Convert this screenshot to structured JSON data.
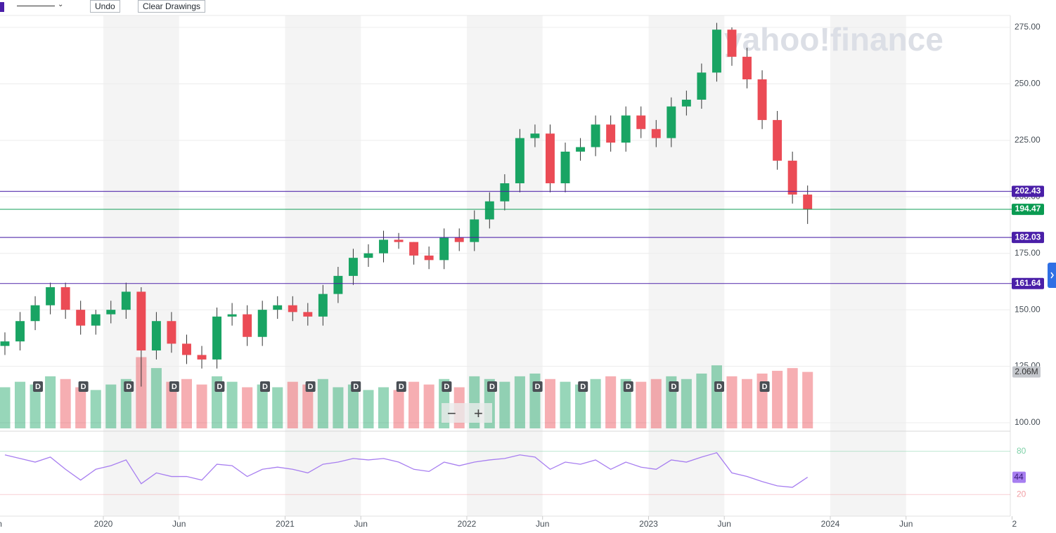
{
  "toolbar": {
    "undo": "Undo",
    "clear": "Clear Drawings",
    "zoom_out": "−",
    "zoom_in": "+"
  },
  "watermark": "yahoo!finance",
  "chart_data": {
    "type": "candlestick",
    "x": [
      "2019-06",
      "2019-07",
      "2019-08",
      "2019-09",
      "2019-10",
      "2019-11",
      "2019-12",
      "2020-01",
      "2020-02",
      "2020-03",
      "2020-04",
      "2020-05",
      "2020-06",
      "2020-07",
      "2020-08",
      "2020-09",
      "2020-10",
      "2020-11",
      "2020-12",
      "2021-01",
      "2021-02",
      "2021-03",
      "2021-04",
      "2021-05",
      "2021-06",
      "2021-07",
      "2021-08",
      "2021-09",
      "2021-10",
      "2021-11",
      "2021-12",
      "2022-01",
      "2022-02",
      "2022-03",
      "2022-04",
      "2022-05",
      "2022-06",
      "2022-07",
      "2022-08",
      "2022-09",
      "2022-10",
      "2022-11",
      "2022-12",
      "2023-01",
      "2023-02",
      "2023-03",
      "2023-04",
      "2023-05",
      "2023-06",
      "2023-07",
      "2023-08",
      "2023-09",
      "2023-10",
      "2023-11"
    ],
    "open": [
      134,
      136,
      145,
      152,
      160,
      150,
      143,
      148,
      150,
      158,
      132,
      145,
      135,
      130,
      128,
      147,
      148,
      138,
      150,
      152,
      149,
      147,
      157,
      165,
      173,
      175,
      181,
      180,
      174,
      172,
      182,
      180,
      190,
      198,
      206,
      226,
      228,
      206,
      220,
      222,
      232,
      224,
      236,
      230,
      226,
      240,
      243,
      255,
      274,
      262,
      252,
      234,
      216,
      201
    ],
    "high": [
      140,
      149,
      156,
      162,
      162,
      154,
      150,
      154,
      162,
      160,
      149,
      149,
      139,
      134,
      151,
      153,
      152,
      154,
      156,
      156,
      153,
      161,
      169,
      177,
      179,
      185,
      184,
      180,
      178,
      186,
      186,
      194,
      202,
      210,
      230,
      232,
      232,
      224,
      226,
      236,
      236,
      240,
      240,
      234,
      244,
      247,
      259,
      277,
      275,
      266,
      256,
      238,
      220,
      205
    ],
    "low": [
      130,
      132,
      141,
      148,
      146,
      139,
      139,
      144,
      146,
      116,
      128,
      131,
      126,
      124,
      124,
      143,
      134,
      134,
      146,
      145,
      143,
      143,
      153,
      161,
      169,
      171,
      177,
      170,
      168,
      168,
      176,
      176,
      186,
      194,
      202,
      222,
      202,
      202,
      216,
      218,
      220,
      220,
      226,
      222,
      222,
      236,
      239,
      251,
      258,
      248,
      230,
      212,
      197,
      188
    ],
    "close": [
      136,
      145,
      152,
      160,
      150,
      143,
      148,
      150,
      158,
      132,
      145,
      135,
      130,
      128,
      147,
      148,
      138,
      150,
      152,
      149,
      147,
      157,
      165,
      173,
      175,
      181,
      180,
      174,
      172,
      182,
      180,
      190,
      198,
      206,
      226,
      228,
      206,
      220,
      222,
      232,
      224,
      236,
      230,
      226,
      240,
      243,
      255,
      274,
      262,
      252,
      234,
      216,
      201,
      194.47
    ],
    "up_color": "#19a463",
    "down_color": "#eb4b55",
    "ylim": [
      100,
      275
    ],
    "yticks": [
      {
        "value": 100,
        "label": "100.00"
      },
      {
        "value": 125,
        "label": "125.00"
      },
      {
        "value": 150,
        "label": "150.00"
      },
      {
        "value": 175,
        "label": "175.00"
      },
      {
        "value": 200,
        "label": "200.00"
      },
      {
        "value": 225,
        "label": "225.00"
      },
      {
        "value": 250,
        "label": "250.00"
      },
      {
        "value": 275,
        "label": "275.00"
      }
    ],
    "grid": true,
    "xticks": [
      {
        "value": "2019-06",
        "label": "n"
      },
      {
        "value": "2020-01",
        "label": "2020"
      },
      {
        "value": "2020-06",
        "label": "Jun"
      },
      {
        "value": "2021-01",
        "label": "2021"
      },
      {
        "value": "2021-06",
        "label": "Jun"
      },
      {
        "value": "2022-01",
        "label": "2022"
      },
      {
        "value": "2022-06",
        "label": "Jun"
      },
      {
        "value": "2023-01",
        "label": "2023"
      },
      {
        "value": "2023-06",
        "label": "Jun"
      },
      {
        "value": "2024-01",
        "label": "2024"
      },
      {
        "value": "2024-06",
        "label": "Jun"
      },
      {
        "value": "2025-01",
        "label": "2"
      }
    ],
    "hlines": [
      {
        "value": 202.43,
        "color": "#4a1fa8"
      },
      {
        "value": 194.47,
        "color": "#0a9b52"
      },
      {
        "value": 182.03,
        "color": "#4a1fa8"
      },
      {
        "value": 161.64,
        "color": "#4a1fa8"
      }
    ],
    "volume": {
      "values": [
        1500000,
        1700000,
        1600000,
        1900000,
        1800000,
        1500000,
        1400000,
        1600000,
        1800000,
        2600000,
        2200000,
        1700000,
        1800000,
        1600000,
        1900000,
        1700000,
        1500000,
        1600000,
        1500000,
        1700000,
        1600000,
        1800000,
        1500000,
        1600000,
        1400000,
        1500000,
        1400000,
        1700000,
        1600000,
        1800000,
        1500000,
        1900000,
        1800000,
        1700000,
        1900000,
        2000000,
        1800000,
        1700000,
        1600000,
        1800000,
        1900000,
        1800000,
        1700000,
        1800000,
        1900000,
        1800000,
        2000000,
        2300000,
        1900000,
        1800000,
        2000000,
        2100000,
        2200000,
        2060000
      ],
      "value_labels": [
        null,
        null,
        null,
        null,
        null,
        null,
        null,
        null,
        null,
        null,
        null,
        null,
        null,
        null,
        null,
        null,
        null,
        null,
        null,
        null,
        null,
        null,
        null,
        null,
        null,
        null,
        null,
        null,
        null,
        null,
        null,
        null,
        null,
        null,
        null,
        null,
        null,
        null,
        null,
        null,
        null,
        null,
        null,
        null,
        null,
        null,
        null,
        null,
        null,
        null,
        null,
        null,
        null,
        "2.06M"
      ],
      "ylim": [
        0,
        4100000
      ]
    },
    "rsi": {
      "values": [
        75,
        70,
        65,
        72,
        55,
        40,
        55,
        60,
        68,
        35,
        50,
        45,
        45,
        40,
        62,
        60,
        45,
        55,
        58,
        55,
        50,
        62,
        65,
        70,
        68,
        70,
        65,
        55,
        52,
        65,
        60,
        65,
        68,
        70,
        75,
        72,
        55,
        65,
        62,
        68,
        55,
        65,
        58,
        55,
        68,
        65,
        72,
        78,
        50,
        45,
        38,
        32,
        30,
        44
      ],
      "color": "#a77ef0",
      "ylim": [
        -10,
        104
      ],
      "yticks": [
        {
          "value": 80,
          "color": "#7fd1a8"
        },
        {
          "value": 20,
          "color": "#f2a0a6"
        }
      ]
    },
    "dividends": [
      "D",
      "D",
      "D",
      "D",
      "D",
      "D",
      "D",
      "D",
      "D",
      "D",
      "D",
      "D",
      "D",
      "D",
      "D",
      "D",
      "D"
    ]
  }
}
